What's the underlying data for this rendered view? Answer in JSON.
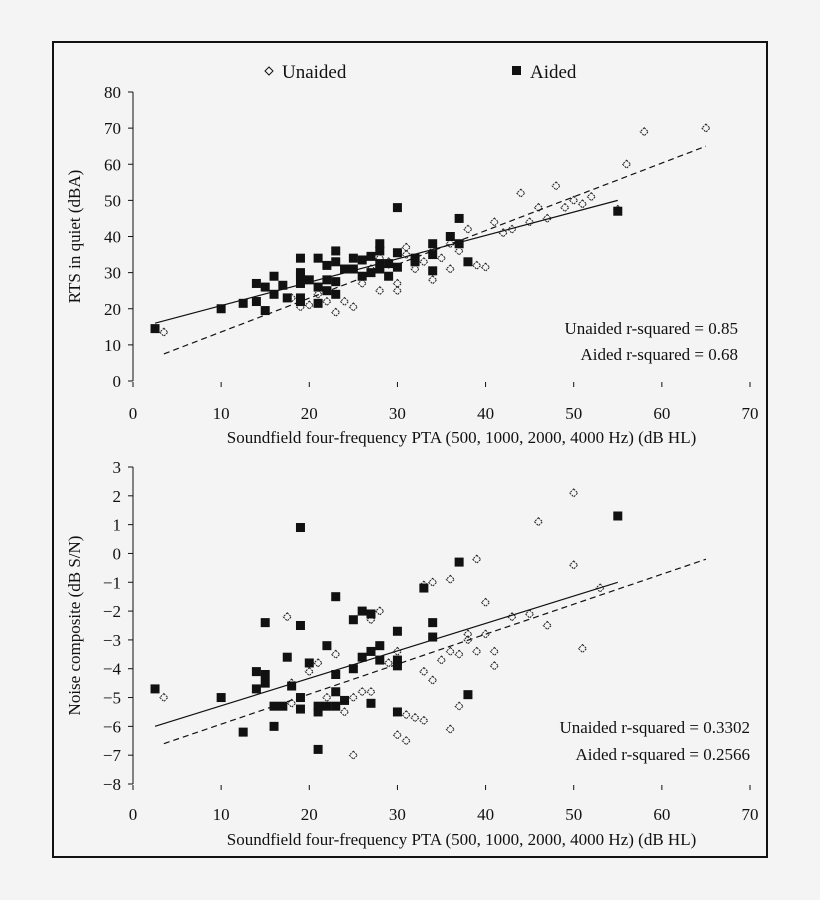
{
  "legend": {
    "unaided": "Unaided",
    "aided": "Aided",
    "unaided_marker": "open-diamond",
    "aided_marker": "filled-square"
  },
  "colors": {
    "background": "#f4f4f4",
    "ink": "#111111"
  },
  "chart_data": [
    {
      "type": "scatter",
      "xlabel": "Soundfield four-frequency PTA (500, 1000, 2000, 4000 Hz) (dB HL)",
      "ylabel": "RTS in quiet (dBA)",
      "xlim": [
        0,
        70
      ],
      "ylim": [
        0,
        80
      ],
      "xticks": [
        "0",
        "10",
        "20",
        "30",
        "40",
        "50",
        "60",
        "70"
      ],
      "yticks": [
        "0",
        "10",
        "20",
        "30",
        "40",
        "50",
        "60",
        "70",
        "80"
      ],
      "grid": false,
      "legend_placement": "top",
      "annotations": [
        "Unaided r-squared = 0.85",
        "Aided r-squared = 0.68"
      ],
      "series": [
        {
          "name": "Unaided",
          "marker": "open-diamond",
          "fit": "dashed",
          "fit_line": [
            [
              3.5,
              7.5
            ],
            [
              65,
              65
            ]
          ],
          "points": [
            [
              3.5,
              13.5
            ],
            [
              18,
              23
            ],
            [
              19,
              20.5
            ],
            [
              20,
              21
            ],
            [
              21,
              24
            ],
            [
              22,
              22
            ],
            [
              23,
              19
            ],
            [
              24,
              22
            ],
            [
              25,
              20.5
            ],
            [
              26,
              27
            ],
            [
              27,
              31
            ],
            [
              28,
              34
            ],
            [
              28,
              25
            ],
            [
              29,
              33
            ],
            [
              30,
              25
            ],
            [
              30,
              27
            ],
            [
              31,
              37
            ],
            [
              31,
              35
            ],
            [
              32,
              31
            ],
            [
              33,
              33
            ],
            [
              34,
              28
            ],
            [
              34,
              36
            ],
            [
              35,
              34
            ],
            [
              36,
              31
            ],
            [
              36,
              38
            ],
            [
              37,
              36
            ],
            [
              38,
              42
            ],
            [
              39,
              32
            ],
            [
              40,
              31.5
            ],
            [
              41,
              44
            ],
            [
              42,
              41
            ],
            [
              43,
              42
            ],
            [
              44,
              52
            ],
            [
              45,
              44
            ],
            [
              46,
              48
            ],
            [
              47,
              45
            ],
            [
              48,
              54
            ],
            [
              49,
              48
            ],
            [
              50,
              50
            ],
            [
              51,
              49
            ],
            [
              52,
              51
            ],
            [
              55,
              47.5
            ],
            [
              56,
              60
            ],
            [
              58,
              69
            ],
            [
              65,
              70
            ]
          ]
        },
        {
          "name": "Aided",
          "marker": "filled-square",
          "fit": "solid",
          "fit_line": [
            [
              2.5,
              16
            ],
            [
              55,
              50
            ]
          ],
          "points": [
            [
              2.5,
              14.5
            ],
            [
              10,
              20
            ],
            [
              12.5,
              21.5
            ],
            [
              14,
              22
            ],
            [
              14,
              27
            ],
            [
              15,
              26
            ],
            [
              15,
              19.5
            ],
            [
              16,
              24
            ],
            [
              16,
              29
            ],
            [
              17,
              26.5
            ],
            [
              17.5,
              23
            ],
            [
              19,
              22
            ],
            [
              19,
              23
            ],
            [
              19,
              27
            ],
            [
              19,
              29
            ],
            [
              19,
              30
            ],
            [
              19,
              34
            ],
            [
              20,
              28
            ],
            [
              21,
              21.5
            ],
            [
              21,
              26
            ],
            [
              21,
              34
            ],
            [
              22,
              25
            ],
            [
              22,
              28
            ],
            [
              22,
              32
            ],
            [
              23,
              24
            ],
            [
              23,
              27.5
            ],
            [
              23,
              33
            ],
            [
              23,
              36
            ],
            [
              24,
              31
            ],
            [
              25,
              31
            ],
            [
              25,
              34
            ],
            [
              26,
              29
            ],
            [
              26,
              33.5
            ],
            [
              27,
              30
            ],
            [
              27,
              34.5
            ],
            [
              28,
              31
            ],
            [
              28,
              36
            ],
            [
              28,
              38
            ],
            [
              28,
              32.5
            ],
            [
              29,
              29
            ],
            [
              29,
              32.5
            ],
            [
              30,
              48
            ],
            [
              30,
              35.5
            ],
            [
              30,
              31.5
            ],
            [
              32,
              34
            ],
            [
              32,
              33
            ],
            [
              34,
              30.5
            ],
            [
              34,
              35
            ],
            [
              34,
              38
            ],
            [
              36,
              40
            ],
            [
              37,
              45
            ],
            [
              37,
              38
            ],
            [
              38,
              33
            ],
            [
              55,
              47
            ]
          ]
        }
      ]
    },
    {
      "type": "scatter",
      "xlabel": "Soundfield four-frequency PTA (500, 1000, 2000, 4000 Hz) (dB HL)",
      "ylabel": "Noise composite (dB S/N)",
      "xlim": [
        0,
        70
      ],
      "ylim": [
        -8,
        3
      ],
      "xticks": [
        "0",
        "10",
        "20",
        "30",
        "40",
        "50",
        "60",
        "70"
      ],
      "yticks": [
        "−8",
        "−7",
        "−6",
        "−5",
        "−4",
        "−3",
        "−2",
        "−1",
        "0",
        "1",
        "2",
        "3"
      ],
      "grid": false,
      "annotations": [
        "Unaided r-squared = 0.3302",
        "Aided r-squared = 0.2566"
      ],
      "series": [
        {
          "name": "Unaided",
          "marker": "open-diamond",
          "fit": "dashed",
          "fit_line": [
            [
              3.5,
              -6.6
            ],
            [
              65,
              -0.2
            ]
          ],
          "points": [
            [
              3.5,
              -5
            ],
            [
              17.5,
              -2.2
            ],
            [
              18,
              -4.5
            ],
            [
              18,
              -5.2
            ],
            [
              20,
              -4.1
            ],
            [
              21,
              -3.8
            ],
            [
              22,
              -5.0
            ],
            [
              23,
              -3.5
            ],
            [
              24,
              -5.5
            ],
            [
              25,
              -5.0
            ],
            [
              26,
              -4.8
            ],
            [
              27,
              -4.8
            ],
            [
              27,
              -2.3
            ],
            [
              28,
              -2.0
            ],
            [
              28,
              -3.2
            ],
            [
              29,
              -3.8
            ],
            [
              30,
              -3.4
            ],
            [
              30,
              -6.3
            ],
            [
              31,
              -6.5
            ],
            [
              31,
              -5.6
            ],
            [
              32,
              -5.7
            ],
            [
              33,
              -1.1
            ],
            [
              33,
              -4.1
            ],
            [
              33,
              -5.8
            ],
            [
              34,
              -1.0
            ],
            [
              34,
              -4.4
            ],
            [
              35,
              -3.7
            ],
            [
              36,
              -3.4
            ],
            [
              36,
              -6.1
            ],
            [
              36,
              -0.9
            ],
            [
              37,
              -3.5
            ],
            [
              37,
              -5.3
            ],
            [
              38,
              -2.8
            ],
            [
              38,
              -3.0
            ],
            [
              39,
              -0.2
            ],
            [
              39,
              -3.4
            ],
            [
              40,
              -1.7
            ],
            [
              40,
              -2.8
            ],
            [
              41,
              -3.4
            ],
            [
              41,
              -3.9
            ],
            [
              43,
              -2.2
            ],
            [
              45,
              -2.1
            ],
            [
              46,
              1.1
            ],
            [
              47,
              -2.5
            ],
            [
              50,
              2.1
            ],
            [
              50,
              -0.4
            ],
            [
              51,
              -3.3
            ],
            [
              53,
              -1.2
            ],
            [
              25,
              -7.0
            ]
          ]
        },
        {
          "name": "Aided",
          "marker": "filled-square",
          "fit": "solid",
          "fit_line": [
            [
              2.5,
              -6
            ],
            [
              55,
              -1
            ]
          ],
          "points": [
            [
              2.5,
              -4.7
            ],
            [
              10,
              -5
            ],
            [
              12.5,
              -6.2
            ],
            [
              14,
              -4.7
            ],
            [
              14,
              -4.1
            ],
            [
              15,
              -4.2
            ],
            [
              15,
              -4.5
            ],
            [
              15,
              -2.4
            ],
            [
              16,
              -5.3
            ],
            [
              16,
              -6
            ],
            [
              17,
              -5.3
            ],
            [
              17.5,
              -3.6
            ],
            [
              18,
              -4.6
            ],
            [
              19,
              -5.4
            ],
            [
              19,
              -5
            ],
            [
              19,
              -2.5
            ],
            [
              19,
              0.9
            ],
            [
              20,
              -3.8
            ],
            [
              21,
              -6.8
            ],
            [
              21,
              -5.3
            ],
            [
              21,
              -5.5
            ],
            [
              22,
              -3.2
            ],
            [
              22,
              -5.3
            ],
            [
              23,
              -1.5
            ],
            [
              23,
              -4.2
            ],
            [
              23,
              -4.8
            ],
            [
              23,
              -5.3
            ],
            [
              24,
              -5.1
            ],
            [
              25,
              -2.3
            ],
            [
              25,
              -4
            ],
            [
              26,
              -2
            ],
            [
              26,
              -3.6
            ],
            [
              27,
              -2.1
            ],
            [
              27,
              -3.4
            ],
            [
              27,
              -5.2
            ],
            [
              28,
              -3.2
            ],
            [
              28,
              -3.7
            ],
            [
              30,
              -2.7
            ],
            [
              30,
              -3.7
            ],
            [
              30,
              -3.9
            ],
            [
              30,
              -5.5
            ],
            [
              33,
              -1.2
            ],
            [
              34,
              -2.4
            ],
            [
              34,
              -2.9
            ],
            [
              37,
              -0.3
            ],
            [
              38,
              -4.9
            ],
            [
              55,
              1.3
            ]
          ]
        }
      ]
    }
  ]
}
